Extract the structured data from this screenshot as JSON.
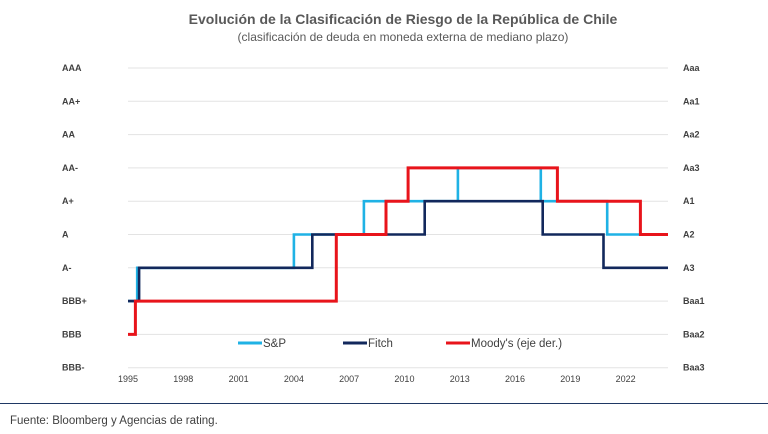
{
  "chart_data": {
    "type": "line",
    "step": true,
    "title": "Evolución de la Clasificación de Riesgo de la República de Chile",
    "subtitle": "(clasificación de deuda en moneda externa de mediano plazo)",
    "y_left_ticks": [
      "AAA",
      "AA+",
      "AA",
      "AA-",
      "A+",
      "A",
      "A-",
      "BBB+",
      "BBB",
      "BBB-"
    ],
    "y_right_ticks": [
      "Aaa",
      "Aa1",
      "Aa2",
      "Aa3",
      "A1",
      "A2",
      "A3",
      "Baa1",
      "Baa2",
      "Baa3"
    ],
    "x_ticks": [
      "1995",
      "1998",
      "2001",
      "2004",
      "2007",
      "2010",
      "2013",
      "2016",
      "2019",
      "2022"
    ],
    "xlim": [
      1995,
      2024.3
    ],
    "grid": true,
    "legend_position": "lower-center",
    "series": [
      {
        "name": "S&P",
        "color": "#1fb2e5",
        "axis": "left",
        "points": [
          [
            1995.0,
            "BBB+"
          ],
          [
            1995.5,
            "BBB+"
          ],
          [
            1995.5,
            "A-"
          ],
          [
            2004.0,
            "A-"
          ],
          [
            2004.0,
            "A"
          ],
          [
            2007.8,
            "A"
          ],
          [
            2007.8,
            "A+"
          ],
          [
            2012.9,
            "A+"
          ],
          [
            2012.9,
            "AA-"
          ],
          [
            2017.4,
            "AA-"
          ],
          [
            2017.4,
            "A+"
          ],
          [
            2021.0,
            "A+"
          ],
          [
            2021.0,
            "A"
          ],
          [
            2024.3,
            "A"
          ]
        ]
      },
      {
        "name": "Fitch",
        "color": "#12285c",
        "axis": "left",
        "points": [
          [
            1995.0,
            "BBB+"
          ],
          [
            1995.6,
            "BBB+"
          ],
          [
            1995.6,
            "A-"
          ],
          [
            2005.0,
            "A-"
          ],
          [
            2005.0,
            "A"
          ],
          [
            2011.1,
            "A"
          ],
          [
            2011.1,
            "A+"
          ],
          [
            2017.5,
            "A+"
          ],
          [
            2017.5,
            "A"
          ],
          [
            2020.8,
            "A"
          ],
          [
            2020.8,
            "A-"
          ],
          [
            2024.3,
            "A-"
          ]
        ]
      },
      {
        "name": "Moody's (eje der.)",
        "color": "#e8141b",
        "axis": "right",
        "points": [
          [
            1995.0,
            "Baa2"
          ],
          [
            1995.4,
            "Baa2"
          ],
          [
            1995.4,
            "Baa1"
          ],
          [
            2006.3,
            "Baa1"
          ],
          [
            2006.3,
            "A2"
          ],
          [
            2009.0,
            "A2"
          ],
          [
            2009.0,
            "A1"
          ],
          [
            2010.2,
            "A1"
          ],
          [
            2010.2,
            "Aa3"
          ],
          [
            2018.3,
            "Aa3"
          ],
          [
            2018.3,
            "A1"
          ],
          [
            2022.8,
            "A1"
          ],
          [
            2022.8,
            "A2"
          ],
          [
            2024.3,
            "A2"
          ]
        ]
      }
    ]
  },
  "footer": {
    "source": "Fuente: Bloomberg y Agencias de rating."
  }
}
